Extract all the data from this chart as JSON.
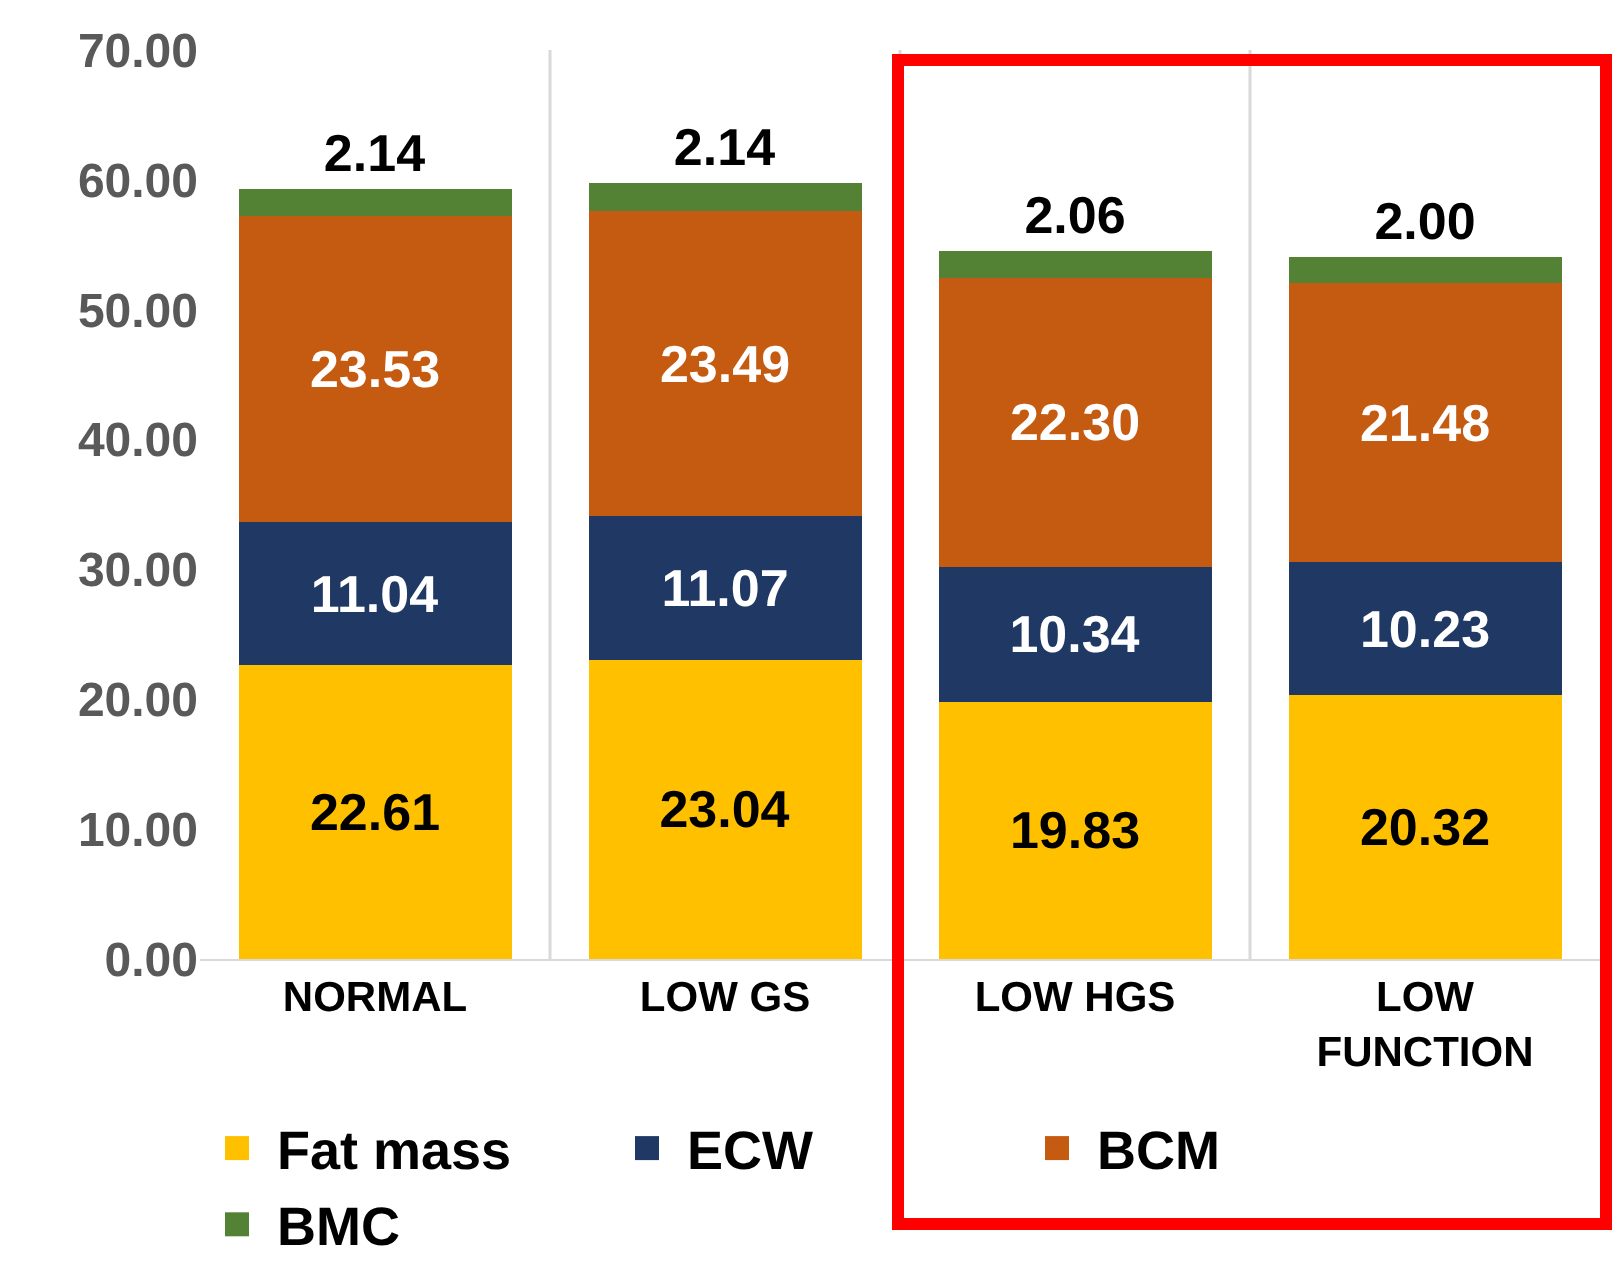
{
  "chart_data": {
    "type": "bar",
    "stacked": true,
    "categories": [
      "NORMAL",
      "LOW GS",
      "LOW HGS",
      "LOW FUNCTION"
    ],
    "series": [
      {
        "name": "Fat mass",
        "color": "#ffc000",
        "values": [
          22.61,
          23.04,
          19.83,
          20.32
        ],
        "value_labels": [
          "22.61",
          "23.04",
          "19.83",
          "20.32"
        ]
      },
      {
        "name": "ECW",
        "color": "#1f3864",
        "values": [
          11.04,
          11.07,
          10.34,
          10.23
        ],
        "value_labels": [
          "11.04",
          "11.07",
          "10.34",
          "10.23"
        ]
      },
      {
        "name": "BCM",
        "color": "#c55a11",
        "values": [
          23.53,
          23.49,
          22.3,
          21.48
        ],
        "value_labels": [
          "23.53",
          "23.49",
          "22.30",
          "21.48"
        ]
      },
      {
        "name": "BMC",
        "color": "#548235",
        "values": [
          2.14,
          2.14,
          2.06,
          2.0
        ],
        "value_labels": [
          "2.14",
          "2.14",
          "2.06",
          "2.00"
        ]
      }
    ],
    "ylim": [
      0,
      70
    ],
    "yticks": [
      {
        "value": 0,
        "label": "0.00"
      },
      {
        "value": 10,
        "label": "10.00"
      },
      {
        "value": 20,
        "label": "20.00"
      },
      {
        "value": 30,
        "label": "30.00"
      },
      {
        "value": 40,
        "label": "40.00"
      },
      {
        "value": 50,
        "label": "50.00"
      },
      {
        "value": 60,
        "label": "60.00"
      },
      {
        "value": 70,
        "label": "70.00"
      }
    ],
    "grid": "x",
    "legend": "bottom"
  }
}
